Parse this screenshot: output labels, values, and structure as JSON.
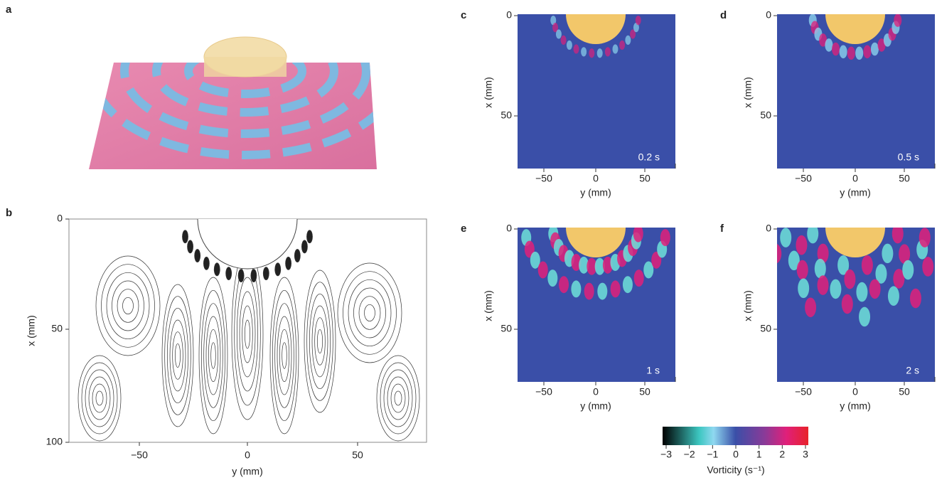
{
  "figure": {
    "panels": [
      {
        "label": "a"
      },
      {
        "label": "b",
        "xlabel": "y (mm)",
        "ylabel": "x (mm)",
        "xticks": [
          "−50",
          "0",
          "50"
        ],
        "yticks": [
          "0",
          "50",
          "100"
        ]
      },
      {
        "label": "c",
        "time": "0.2 s",
        "xlabel": "y (mm)",
        "ylabel": "x (mm)",
        "xticks": [
          "−50",
          "0",
          "50"
        ],
        "yticks": [
          "0",
          "50"
        ]
      },
      {
        "label": "d",
        "time": "0.5 s",
        "xlabel": "y (mm)",
        "ylabel": "x (mm)",
        "xticks": [
          "−50",
          "0",
          "50"
        ],
        "yticks": [
          "0",
          "50"
        ]
      },
      {
        "label": "e",
        "time": "1 s",
        "xlabel": "y (mm)",
        "ylabel": "x (mm)",
        "xticks": [
          "−50",
          "0",
          "50"
        ],
        "yticks": [
          "0",
          "50"
        ]
      },
      {
        "label": "f",
        "time": "2 s",
        "xlabel": "y (mm)",
        "ylabel": "x (mm)",
        "xticks": [
          "−50",
          "0",
          "50"
        ],
        "yticks": [
          "0",
          "50"
        ]
      }
    ],
    "colorbar": {
      "ticks": [
        "−3",
        "−2",
        "−1",
        "0",
        "1",
        "2",
        "3"
      ],
      "label": "Vorticity (s⁻¹)"
    }
  }
}
